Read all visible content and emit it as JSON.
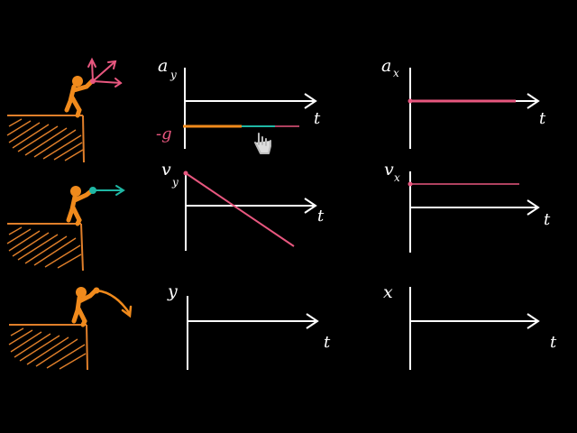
{
  "colors": {
    "background": "#000000",
    "axis": "#ffffff",
    "pink": "#e8577f",
    "orange": "#f08a1c",
    "teal": "#1fb7a4",
    "ground": "#e07f2a"
  },
  "graphs": {
    "ay": {
      "label": "a",
      "sub": "y",
      "t": "t",
      "neg_label": "-g"
    },
    "ax": {
      "label": "a",
      "sub": "x",
      "t": "t"
    },
    "vy": {
      "label": "v",
      "sub": "y",
      "t": "t"
    },
    "vx": {
      "label": "v",
      "sub": "x",
      "t": "t"
    },
    "y": {
      "label": "y",
      "t": "t"
    },
    "x": {
      "label": "x",
      "t": "t"
    }
  },
  "icons": {
    "cursor": "hand-pointer-icon"
  }
}
